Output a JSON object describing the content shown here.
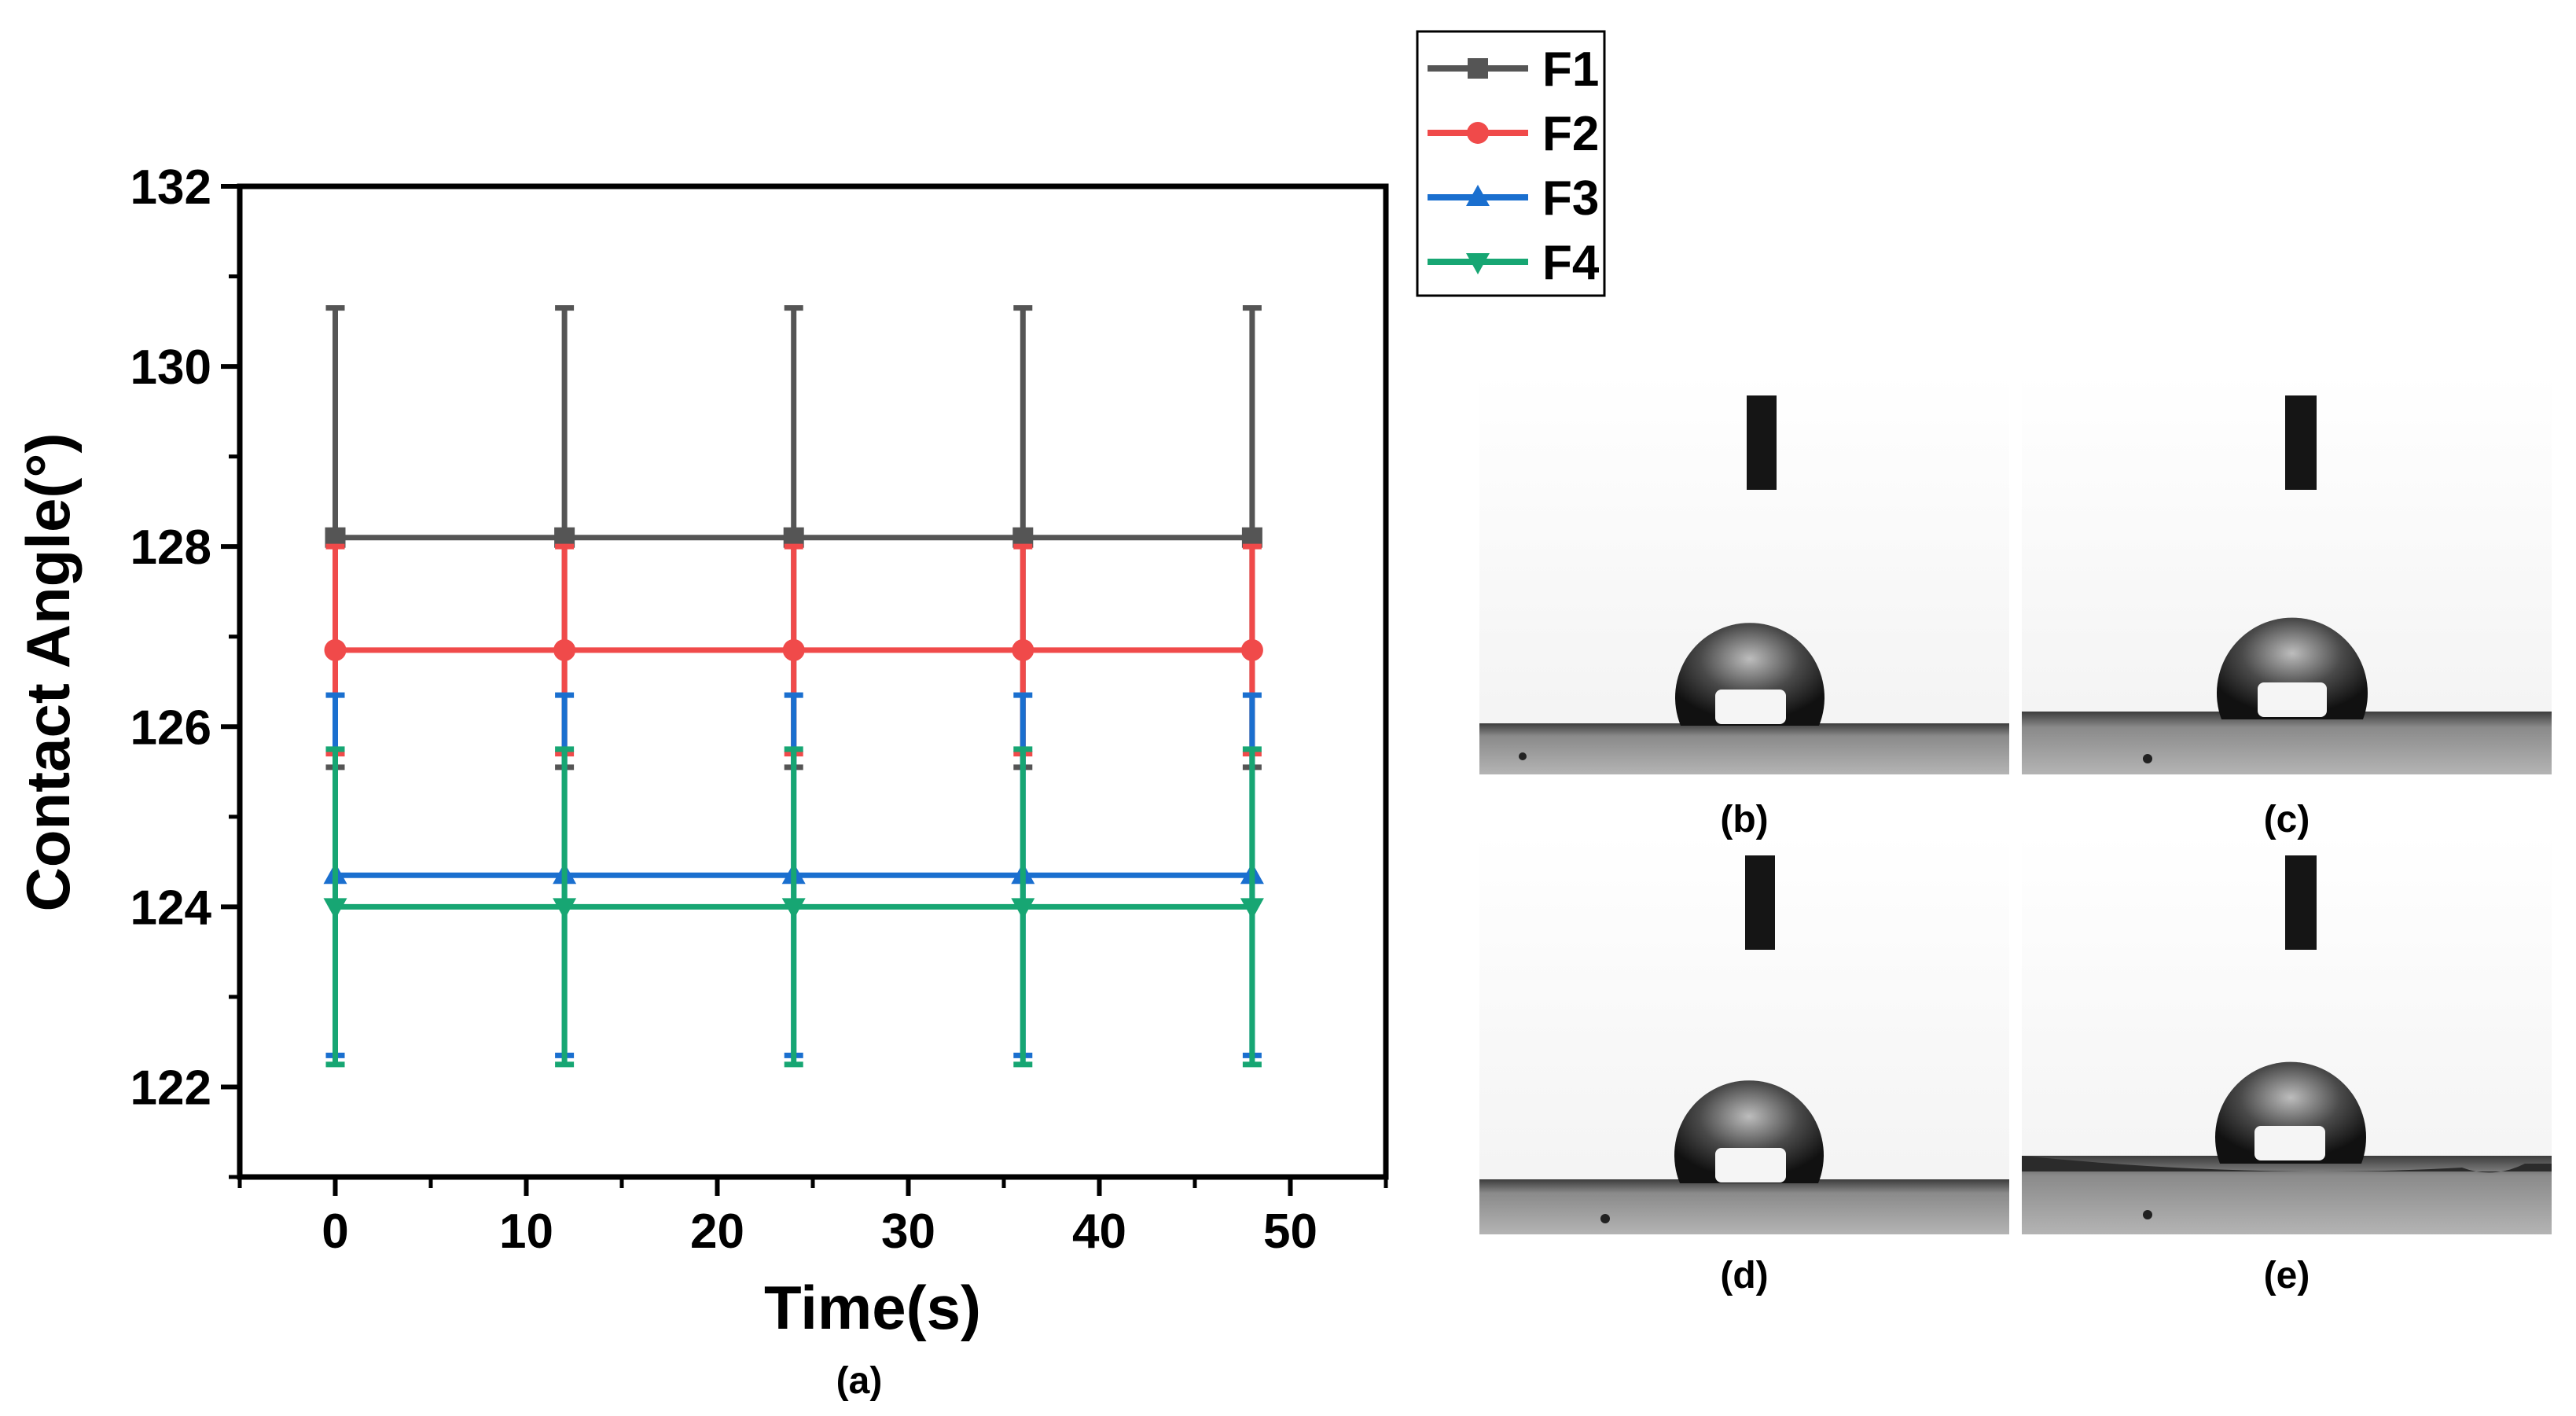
{
  "chart_data": {
    "type": "line",
    "panel_label": "(a)",
    "title": "",
    "xlabel": "Time(s)",
    "ylabel": "Contact Angle(°)",
    "xlim": [
      -5,
      55
    ],
    "ylim": [
      121,
      132
    ],
    "x_ticks": [
      0,
      10,
      20,
      30,
      40,
      50
    ],
    "y_ticks": [
      122,
      124,
      126,
      128,
      130,
      132
    ],
    "legend_position": "top-right, outside plot",
    "x": [
      0,
      12,
      24,
      36,
      48
    ],
    "series": [
      {
        "name": "F1",
        "marker": "square",
        "color": "#555555",
        "values": [
          128.1,
          128.1,
          128.1,
          128.1,
          128.1
        ],
        "error": [
          2.55,
          2.55,
          2.55,
          2.55,
          2.55
        ]
      },
      {
        "name": "F2",
        "marker": "circle",
        "color": "#f04a4a",
        "values": [
          126.85,
          126.85,
          126.85,
          126.85,
          126.85
        ],
        "error": [
          1.15,
          1.15,
          1.15,
          1.15,
          1.15
        ]
      },
      {
        "name": "F3",
        "marker": "triangle-up",
        "color": "#1a6fcf",
        "values": [
          124.35,
          124.35,
          124.35,
          124.35,
          124.35
        ],
        "error": [
          2.0,
          2.0,
          2.0,
          2.0,
          2.0
        ]
      },
      {
        "name": "F4",
        "marker": "triangle-down",
        "color": "#17a673",
        "values": [
          124.0,
          124.0,
          124.0,
          124.0,
          124.0
        ],
        "error": [
          1.75,
          1.75,
          1.75,
          1.75,
          1.75
        ]
      }
    ]
  },
  "photos": {
    "labels": [
      "(b)",
      "(c)",
      "(d)",
      "(e)"
    ]
  }
}
